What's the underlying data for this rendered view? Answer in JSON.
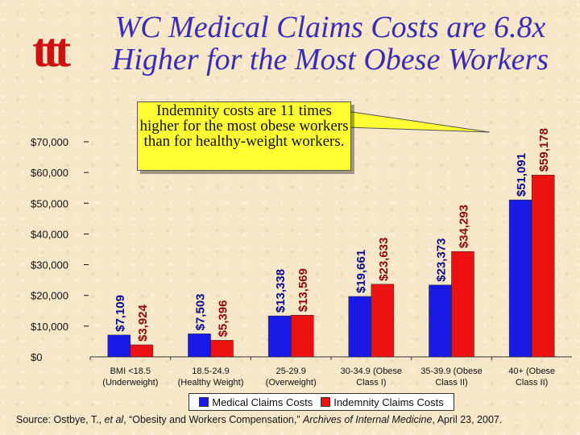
{
  "title_line1": "WC Medical Claims Costs are 6.8x",
  "title_line2": "Higher for the Most Obese Workers",
  "logo_text": "ttt",
  "callout_text": "Indemnity costs are 11 times higher for the most obese workers than for healthy-weight workers.",
  "colors": {
    "medical": "#1a1ae6",
    "indemnity": "#ee1111",
    "title": "#3a2bb8",
    "callout": "#ffff33",
    "logo": "#cc1111"
  },
  "source": {
    "prefix": "Source: Ostbye, T., ",
    "etal": "et al",
    "middle": ", “Obesity and Workers Compensation,” ",
    "journal": "Archives of Internal Medicine",
    "suffix": ", April 23, 2007."
  },
  "chart_data": {
    "type": "bar",
    "title": "WC Medical Claims Costs are 6.8x Higher for the Most Obese Workers",
    "xlabel": "",
    "ylabel": "",
    "ylim": [
      0,
      70000
    ],
    "yticks": [
      "$0",
      "$10,000",
      "$20,000",
      "$30,000",
      "$40,000",
      "$50,000",
      "$60,000",
      "$70,000"
    ],
    "categories": [
      [
        "BMI <18.5",
        "(Underweight)"
      ],
      [
        "18.5-24.9",
        "(Healthy Weight)"
      ],
      [
        "25-29.9",
        "(Overweight)"
      ],
      [
        "30-34.9 (Obese",
        "Class I)"
      ],
      [
        "35-39.9 (Obese",
        "Class II)"
      ],
      [
        "40+ (Obese",
        "Class II)"
      ]
    ],
    "series": [
      {
        "name": "Medical Claims Costs",
        "values": [
          7109,
          7503,
          13338,
          19661,
          23373,
          51091
        ],
        "labels": [
          "$7,109",
          "$7,503",
          "$13,338",
          "$19,661",
          "$23,373",
          "$51,091"
        ]
      },
      {
        "name": "Indemnity Claims Costs",
        "values": [
          3924,
          5396,
          13569,
          23633,
          34293,
          59178
        ],
        "labels": [
          "$3,924",
          "$5,396",
          "$13,569",
          "$23,633",
          "$34,293",
          "$59,178"
        ]
      }
    ],
    "legend": "bottom"
  }
}
